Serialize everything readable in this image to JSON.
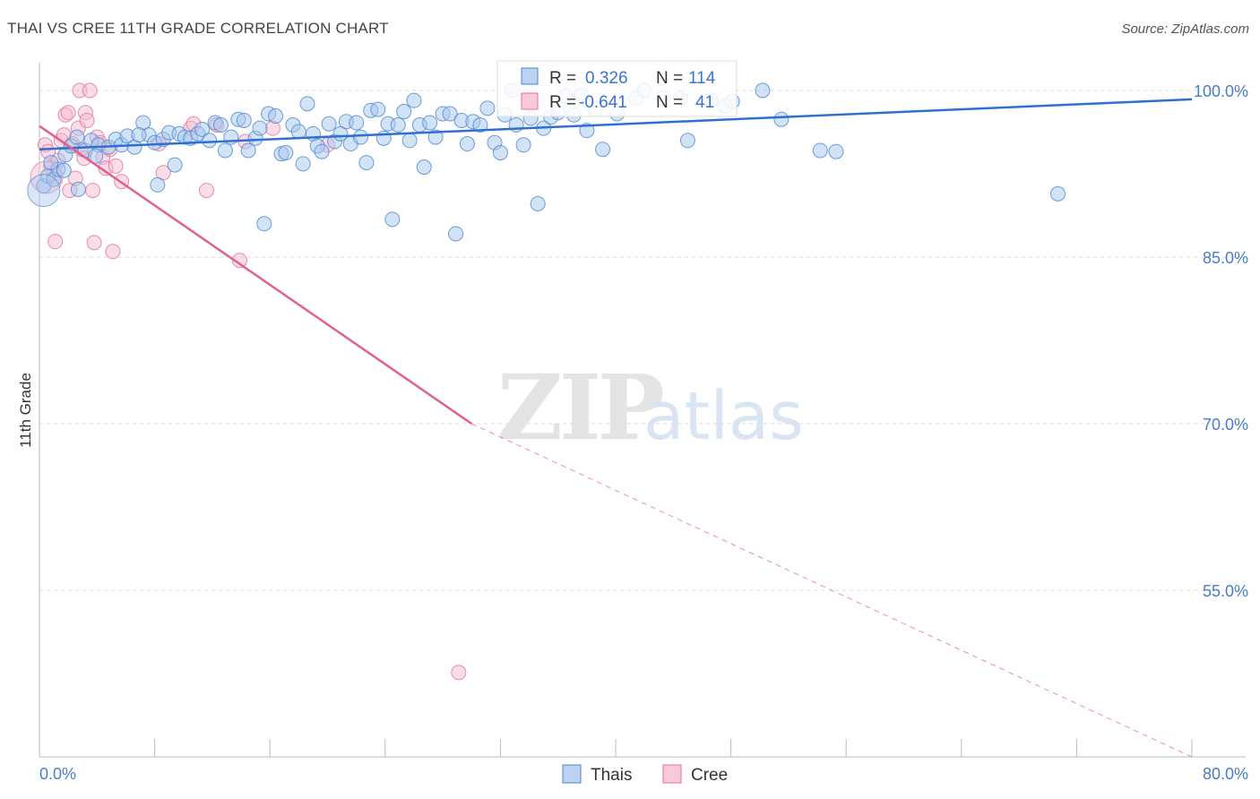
{
  "title": "THAI VS CREE 11TH GRADE CORRELATION CHART",
  "source": "Source: ZipAtlas.com",
  "watermark": {
    "part1": "ZIP",
    "part2": "atlas"
  },
  "colors": {
    "thai_fill": "#a8c8ee",
    "thai_stroke": "#4a86d4",
    "thai_line": "#2f6fd0",
    "cree_fill": "#f6bcd0",
    "cree_stroke": "#e4709a",
    "cree_line": "#e0608f",
    "grid": "#dddddd",
    "tick_text": "#4a7cc8"
  },
  "stats": {
    "thai": {
      "r_label": "R =",
      "r_value": "0.326",
      "n_label": "N =",
      "n_value": "114"
    },
    "cree": {
      "r_label": "R =",
      "r_value": "-0.641",
      "n_label": "N =",
      "n_value": "41"
    }
  },
  "chart_data": {
    "type": "scatter",
    "title": "THAI VS CREE 11TH GRADE CORRELATION CHART",
    "xlabel": "",
    "ylabel": "11th Grade",
    "xlim": [
      0,
      80
    ],
    "ylim": [
      40,
      102.5
    ],
    "x_tick_labels": [
      {
        "value": 0,
        "label": "0.0%"
      },
      {
        "value": 80,
        "label": "80.0%"
      }
    ],
    "y_tick_labels": [
      {
        "value": 100,
        "label": "100.0%"
      },
      {
        "value": 85,
        "label": "85.0%"
      },
      {
        "value": 70,
        "label": "70.0%"
      },
      {
        "value": 55,
        "label": "55.0%"
      }
    ],
    "legend": [
      {
        "name": "Thais",
        "color": "#a8c8ee"
      },
      {
        "name": "Cree",
        "color": "#f6bcd0"
      }
    ],
    "series": [
      {
        "name": "Thais",
        "trend": {
          "x0": 0,
          "y0": 94.7,
          "x1": 80,
          "y1": 99.2
        },
        "points": [
          [
            0.3,
            91.4
          ],
          [
            0.6,
            92.3
          ],
          [
            1.0,
            92.0
          ],
          [
            1.3,
            92.9
          ],
          [
            0.8,
            93.5
          ],
          [
            1.8,
            94.2
          ],
          [
            2.2,
            95.0
          ],
          [
            2.7,
            91.1
          ],
          [
            3.2,
            94.6
          ],
          [
            3.6,
            95.5
          ],
          [
            4.1,
            95.1
          ],
          [
            4.8,
            94.9
          ],
          [
            5.3,
            95.6
          ],
          [
            5.7,
            95.1
          ],
          [
            6.1,
            95.9
          ],
          [
            6.6,
            94.9
          ],
          [
            7.2,
            97.1
          ],
          [
            7.6,
            96.0
          ],
          [
            8.0,
            95.3
          ],
          [
            8.2,
            91.5
          ],
          [
            8.6,
            95.6
          ],
          [
            9.0,
            96.2
          ],
          [
            9.4,
            93.3
          ],
          [
            9.7,
            96.1
          ],
          [
            10.1,
            95.8
          ],
          [
            10.5,
            95.7
          ],
          [
            11.0,
            96.1
          ],
          [
            11.3,
            96.5
          ],
          [
            11.8,
            95.5
          ],
          [
            12.2,
            97.1
          ],
          [
            12.6,
            96.9
          ],
          [
            12.9,
            94.6
          ],
          [
            13.3,
            95.8
          ],
          [
            13.8,
            97.4
          ],
          [
            14.2,
            97.3
          ],
          [
            14.5,
            94.6
          ],
          [
            15.0,
            95.7
          ],
          [
            15.3,
            96.6
          ],
          [
            15.6,
            88.0
          ],
          [
            15.9,
            97.9
          ],
          [
            16.4,
            97.7
          ],
          [
            16.8,
            94.3
          ],
          [
            17.1,
            94.4
          ],
          [
            17.6,
            96.9
          ],
          [
            18.0,
            96.3
          ],
          [
            18.3,
            93.4
          ],
          [
            18.6,
            98.8
          ],
          [
            19.0,
            96.1
          ],
          [
            19.3,
            95.0
          ],
          [
            19.6,
            94.5
          ],
          [
            20.1,
            97.0
          ],
          [
            20.5,
            95.4
          ],
          [
            20.9,
            96.1
          ],
          [
            21.3,
            97.2
          ],
          [
            21.6,
            95.2
          ],
          [
            22.0,
            97.1
          ],
          [
            22.3,
            95.8
          ],
          [
            22.7,
            93.5
          ],
          [
            23.0,
            98.2
          ],
          [
            23.5,
            98.3
          ],
          [
            23.9,
            95.7
          ],
          [
            24.2,
            97.0
          ],
          [
            24.5,
            88.4
          ],
          [
            24.9,
            96.9
          ],
          [
            25.3,
            98.1
          ],
          [
            25.7,
            95.5
          ],
          [
            26.0,
            99.1
          ],
          [
            26.4,
            96.9
          ],
          [
            26.7,
            93.1
          ],
          [
            27.1,
            97.1
          ],
          [
            27.5,
            95.8
          ],
          [
            28.0,
            97.9
          ],
          [
            28.5,
            97.9
          ],
          [
            28.9,
            87.1
          ],
          [
            29.3,
            97.3
          ],
          [
            29.7,
            95.2
          ],
          [
            30.1,
            97.2
          ],
          [
            30.6,
            96.9
          ],
          [
            31.1,
            98.4
          ],
          [
            31.6,
            95.3
          ],
          [
            32.0,
            94.4
          ],
          [
            32.3,
            97.8
          ],
          [
            32.8,
            100.0
          ],
          [
            33.1,
            96.9
          ],
          [
            33.6,
            95.1
          ],
          [
            34.1,
            97.5
          ],
          [
            34.6,
            89.8
          ],
          [
            35.0,
            96.6
          ],
          [
            35.5,
            97.6
          ],
          [
            36.0,
            98.0
          ],
          [
            36.5,
            99.5
          ],
          [
            37.1,
            97.8
          ],
          [
            37.6,
            99.6
          ],
          [
            38.0,
            96.4
          ],
          [
            38.6,
            98.3
          ],
          [
            39.1,
            94.7
          ],
          [
            40.1,
            97.9
          ],
          [
            41.4,
            99.3
          ],
          [
            42.0,
            100.0
          ],
          [
            43.3,
            99.3
          ],
          [
            44.5,
            99.3
          ],
          [
            45.0,
            95.5
          ],
          [
            46.6,
            99.1
          ],
          [
            47.6,
            98.6
          ],
          [
            48.1,
            99.0
          ],
          [
            50.2,
            100.0
          ],
          [
            51.5,
            97.4
          ],
          [
            54.2,
            94.6
          ],
          [
            55.3,
            94.5
          ],
          [
            70.7,
            90.7
          ],
          [
            1.7,
            92.8
          ],
          [
            2.6,
            95.8
          ],
          [
            3.9,
            94.1
          ],
          [
            6.9,
            96.0
          ]
        ],
        "big_point": [
          0.3,
          91.0
        ]
      },
      {
        "name": "Cree",
        "trend": {
          "x0": 0,
          "y0": 96.8,
          "x1": 30,
          "y1": 70.0,
          "dash_to_x": 80,
          "dash_to_y": 40.0
        },
        "points": [
          [
            0.4,
            95.1
          ],
          [
            0.6,
            94.5
          ],
          [
            0.8,
            93.1
          ],
          [
            1.0,
            92.5
          ],
          [
            1.1,
            86.4
          ],
          [
            1.3,
            93.7
          ],
          [
            1.5,
            95.5
          ],
          [
            1.7,
            96.0
          ],
          [
            1.8,
            97.8
          ],
          [
            2.0,
            98.0
          ],
          [
            2.1,
            91.0
          ],
          [
            2.3,
            95.2
          ],
          [
            2.5,
            92.1
          ],
          [
            2.7,
            96.6
          ],
          [
            2.8,
            100.0
          ],
          [
            2.9,
            94.7
          ],
          [
            3.1,
            93.9
          ],
          [
            3.2,
            98.0
          ],
          [
            3.3,
            97.3
          ],
          [
            3.5,
            100.0
          ],
          [
            3.7,
            91.0
          ],
          [
            3.8,
            86.3
          ],
          [
            4.0,
            95.8
          ],
          [
            4.2,
            95.3
          ],
          [
            4.4,
            94.0
          ],
          [
            4.6,
            93.0
          ],
          [
            4.9,
            94.7
          ],
          [
            5.1,
            85.5
          ],
          [
            5.3,
            93.2
          ],
          [
            5.7,
            91.8
          ],
          [
            8.3,
            95.2
          ],
          [
            8.6,
            92.6
          ],
          [
            10.5,
            96.6
          ],
          [
            10.7,
            97.0
          ],
          [
            11.6,
            91.0
          ],
          [
            12.3,
            96.9
          ],
          [
            13.9,
            84.7
          ],
          [
            14.3,
            95.4
          ],
          [
            16.2,
            96.6
          ],
          [
            20.0,
            95.1
          ],
          [
            29.1,
            47.6
          ]
        ],
        "big_point": [
          0.5,
          92.2
        ]
      }
    ]
  }
}
